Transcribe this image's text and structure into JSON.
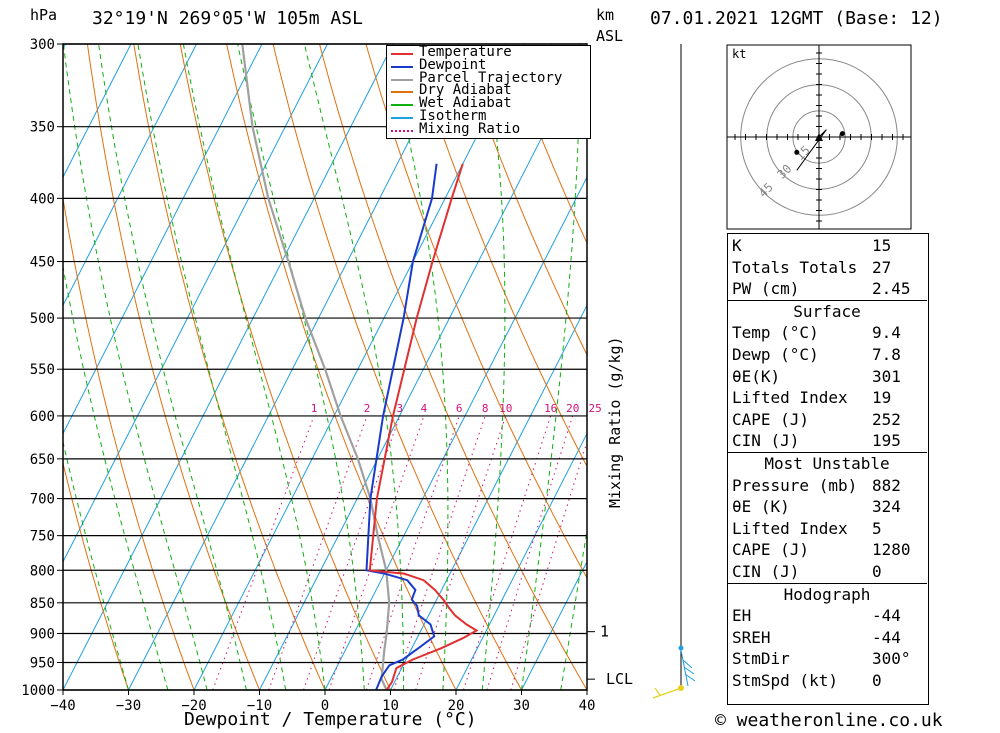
{
  "header": {
    "left_unit": "hPa",
    "location": "32°19'N  269°05'W  105m  ASL",
    "km_unit": "km",
    "asl_unit": "ASL",
    "datetime": "07.01.2021  12GMT  (Base: 12)"
  },
  "footer": {
    "copyright": "© weatheronline.co.uk"
  },
  "chart_data": {
    "type": "line",
    "title": "",
    "xlabel": "Dewpoint / Temperature (°C)",
    "ylabel": "hPa",
    "right_axis_label": "Mixing Ratio (g/kg)",
    "xlim": [
      -40,
      40
    ],
    "ylim": [
      1000,
      300
    ],
    "pressure_ticks": [
      300,
      350,
      400,
      450,
      500,
      550,
      600,
      650,
      700,
      750,
      800,
      850,
      900,
      950,
      1000
    ],
    "temperature_ticks": [
      -40,
      -30,
      -20,
      -10,
      0,
      10,
      20,
      30,
      40
    ],
    "mixing_ratio_labels": [
      "1",
      "2",
      "3",
      "4",
      "6",
      "8",
      "10",
      "16",
      "20",
      "25"
    ],
    "mixing_ratio_values": [
      1,
      2,
      3,
      4,
      6,
      8,
      10,
      16,
      20,
      25
    ],
    "height_markers": [
      {
        "label": "1",
        "pressure": 897
      },
      {
        "label": "LCL",
        "pressure": 980
      }
    ],
    "legend": {
      "placement": "top-right",
      "entries": [
        {
          "name": "Temperature",
          "color": "#e03030"
        },
        {
          "name": "Dewpoint",
          "color": "#1a3acc"
        },
        {
          "name": "Parcel Trajectory",
          "color": "#a0a0a0"
        },
        {
          "name": "Dry Adiabat",
          "color": "#e07010"
        },
        {
          "name": "Wet Adiabat",
          "color": "#10b010"
        },
        {
          "name": "Isotherm",
          "color": "#20a0e0"
        },
        {
          "name": "Mixing Ratio",
          "color": "#d0107a"
        }
      ]
    },
    "series": [
      {
        "name": "Temperature",
        "points": [
          [
            1000,
            9.4
          ],
          [
            985,
            9.6
          ],
          [
            960,
            9.2
          ],
          [
            945,
            11
          ],
          [
            925,
            14.5
          ],
          [
            908,
            17
          ],
          [
            895,
            18.5
          ],
          [
            885,
            16.5
          ],
          [
            870,
            14
          ],
          [
            858,
            12.5
          ],
          [
            845,
            11
          ],
          [
            830,
            9
          ],
          [
            815,
            6.5
          ],
          [
            805,
            3
          ],
          [
            800,
            -2.5
          ],
          [
            700,
            -7
          ],
          [
            600,
            -11
          ],
          [
            500,
            -15
          ],
          [
            450,
            -17
          ],
          [
            400,
            -19
          ],
          [
            375,
            -20
          ]
        ]
      },
      {
        "name": "Dewpoint",
        "points": [
          [
            1000,
            7.8
          ],
          [
            975,
            7.6
          ],
          [
            955,
            7.9
          ],
          [
            945,
            9.5
          ],
          [
            925,
            11
          ],
          [
            905,
            12.5
          ],
          [
            885,
            11
          ],
          [
            870,
            8.5
          ],
          [
            855,
            7.5
          ],
          [
            845,
            6.2
          ],
          [
            830,
            6
          ],
          [
            815,
            4
          ],
          [
            805,
            0
          ],
          [
            800,
            -3
          ],
          [
            700,
            -8
          ],
          [
            600,
            -12.5
          ],
          [
            500,
            -17
          ],
          [
            450,
            -20
          ],
          [
            400,
            -22
          ],
          [
            375,
            -24
          ]
        ]
      },
      {
        "name": "Parcel Trajectory",
        "points": [
          [
            1000,
            9.4
          ],
          [
            980,
            7.8
          ],
          [
            930,
            6
          ],
          [
            900,
            5
          ],
          [
            850,
            3
          ],
          [
            800,
            0
          ],
          [
            750,
            -4
          ],
          [
            700,
            -8
          ],
          [
            650,
            -13
          ],
          [
            600,
            -19
          ],
          [
            550,
            -25
          ],
          [
            500,
            -32
          ],
          [
            450,
            -39
          ],
          [
            400,
            -47
          ],
          [
            350,
            -55
          ],
          [
            300,
            -63
          ]
        ]
      }
    ],
    "hodograph": {
      "unit_label": "kt",
      "ring_labels": [
        "15",
        "30",
        "45"
      ],
      "trace": [
        [
          0,
          0
        ],
        [
          2,
          -2
        ],
        [
          -6,
          9
        ]
      ]
    }
  },
  "indices": {
    "basic": [
      {
        "label": "K",
        "value": "15"
      },
      {
        "label": "Totals Totals",
        "value": "27"
      },
      {
        "label": "PW (cm)",
        "value": "2.45"
      }
    ],
    "surface": {
      "title": "Surface",
      "rows": [
        {
          "label": "Temp (°C)",
          "value": "9.4"
        },
        {
          "label": "Dewp (°C)",
          "value": "7.8"
        },
        {
          "label": "θE(K)",
          "value": "301"
        },
        {
          "label": "Lifted Index",
          "value": "19"
        },
        {
          "label": "CAPE (J)",
          "value": "252"
        },
        {
          "label": "CIN (J)",
          "value": "195"
        }
      ]
    },
    "most_unstable": {
      "title": "Most Unstable",
      "rows": [
        {
          "label": "Pressure (mb)",
          "value": "882"
        },
        {
          "label": "θE (K)",
          "value": "324"
        },
        {
          "label": "Lifted Index",
          "value": "5"
        },
        {
          "label": "CAPE (J)",
          "value": "1280"
        },
        {
          "label": "CIN (J)",
          "value": "0"
        }
      ]
    },
    "hodograph": {
      "title": "Hodograph",
      "rows": [
        {
          "label": "EH",
          "value": "-44"
        },
        {
          "label": "SREH",
          "value": "-44"
        },
        {
          "label": "StmDir",
          "value": "300°"
        },
        {
          "label": "StmSpd (kt)",
          "value": "0"
        }
      ]
    }
  }
}
